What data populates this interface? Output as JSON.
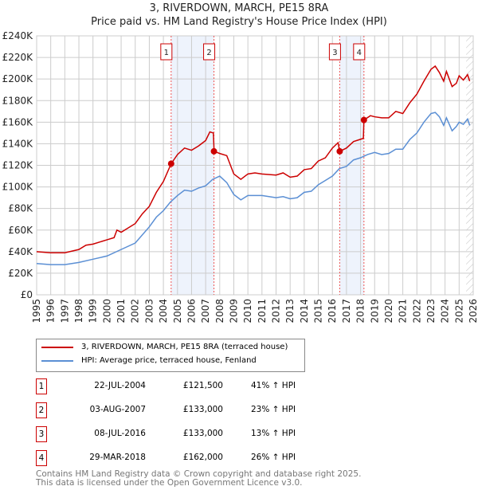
{
  "chart_data": {
    "type": "line",
    "title": "3, RIVERDOWN, MARCH, PE15 8RA",
    "subtitle": "Price paid vs. HM Land Registry's House Price Index (HPI)",
    "ylim": [
      0,
      240000
    ],
    "xlim": [
      1995,
      2026
    ],
    "y_ticks": [
      "£0",
      "£20K",
      "£40K",
      "£60K",
      "£80K",
      "£100K",
      "£120K",
      "£140K",
      "£160K",
      "£180K",
      "£200K",
      "£220K",
      "£240K"
    ],
    "x_ticks": [
      "1995",
      "1996",
      "1997",
      "1998",
      "1999",
      "2000",
      "2001",
      "2002",
      "2003",
      "2004",
      "2005",
      "2006",
      "2007",
      "2008",
      "2009",
      "2010",
      "2011",
      "2012",
      "2013",
      "2014",
      "2015",
      "2016",
      "2017",
      "2018",
      "2019",
      "2020",
      "2021",
      "2022",
      "2023",
      "2024",
      "2025",
      "2026"
    ],
    "grid": true,
    "series": [
      {
        "name": "3, RIVERDOWN, MARCH, PE15 8RA (terraced house)",
        "color": "#cc0000",
        "points": [
          [
            1995,
            40
          ],
          [
            1996,
            39
          ],
          [
            1997,
            39
          ],
          [
            1998,
            42
          ],
          [
            1998.5,
            46
          ],
          [
            1999,
            47
          ],
          [
            2000,
            51
          ],
          [
            2000.5,
            53
          ],
          [
            2000.7,
            60
          ],
          [
            2001,
            58
          ],
          [
            2002,
            66
          ],
          [
            2002.5,
            75
          ],
          [
            2003,
            82
          ],
          [
            2003.5,
            95
          ],
          [
            2004,
            105
          ],
          [
            2004.55,
            121.5
          ],
          [
            2005,
            130
          ],
          [
            2005.5,
            136
          ],
          [
            2006,
            134
          ],
          [
            2006.5,
            138
          ],
          [
            2007,
            143
          ],
          [
            2007.3,
            151
          ],
          [
            2007.55,
            150
          ],
          [
            2007.6,
            133
          ],
          [
            2008,
            131
          ],
          [
            2008.5,
            129
          ],
          [
            2009,
            112
          ],
          [
            2009.5,
            107
          ],
          [
            2010,
            112
          ],
          [
            2010.5,
            113
          ],
          [
            2011,
            112
          ],
          [
            2012,
            111
          ],
          [
            2012.5,
            113
          ],
          [
            2013,
            109
          ],
          [
            2013.5,
            110
          ],
          [
            2014,
            116
          ],
          [
            2014.5,
            117
          ],
          [
            2015,
            124
          ],
          [
            2015.5,
            127
          ],
          [
            2016,
            136
          ],
          [
            2016.4,
            141
          ],
          [
            2016.52,
            133
          ],
          [
            2017,
            136
          ],
          [
            2017.5,
            142
          ],
          [
            2018.2,
            145
          ],
          [
            2018.24,
            162
          ],
          [
            2018.7,
            166
          ],
          [
            2019,
            165
          ],
          [
            2019.5,
            164
          ],
          [
            2020,
            164
          ],
          [
            2020.5,
            170
          ],
          [
            2021,
            168
          ],
          [
            2021.5,
            178
          ],
          [
            2022,
            186
          ],
          [
            2022.5,
            198
          ],
          [
            2023,
            209
          ],
          [
            2023.3,
            212
          ],
          [
            2023.6,
            206
          ],
          [
            2023.9,
            198
          ],
          [
            2024.1,
            207
          ],
          [
            2024.5,
            193
          ],
          [
            2024.8,
            196
          ],
          [
            2025,
            203
          ],
          [
            2025.3,
            199
          ],
          [
            2025.6,
            204
          ],
          [
            2025.75,
            198
          ]
        ]
      },
      {
        "name": "HPI: Average price, terraced house, Fenland",
        "color": "#5b8fd4",
        "points": [
          [
            1995,
            29
          ],
          [
            1996,
            28
          ],
          [
            1997,
            28
          ],
          [
            1998,
            30
          ],
          [
            1999,
            33
          ],
          [
            2000,
            36
          ],
          [
            2001,
            42
          ],
          [
            2002,
            48
          ],
          [
            2003,
            63
          ],
          [
            2003.5,
            72
          ],
          [
            2004,
            78
          ],
          [
            2004.5,
            86
          ],
          [
            2005,
            92
          ],
          [
            2005.5,
            97
          ],
          [
            2006,
            96
          ],
          [
            2006.5,
            99
          ],
          [
            2007,
            101
          ],
          [
            2007.5,
            107
          ],
          [
            2008,
            110
          ],
          [
            2008.5,
            104
          ],
          [
            2009,
            93
          ],
          [
            2009.5,
            88
          ],
          [
            2010,
            92
          ],
          [
            2011,
            92
          ],
          [
            2012,
            90
          ],
          [
            2012.5,
            91
          ],
          [
            2013,
            89
          ],
          [
            2013.5,
            90
          ],
          [
            2014,
            95
          ],
          [
            2014.5,
            96
          ],
          [
            2015,
            102
          ],
          [
            2015.5,
            106
          ],
          [
            2016,
            110
          ],
          [
            2016.5,
            117
          ],
          [
            2017,
            119
          ],
          [
            2017.5,
            125
          ],
          [
            2018,
            127
          ],
          [
            2018.5,
            130
          ],
          [
            2019,
            132
          ],
          [
            2019.5,
            130
          ],
          [
            2020,
            131
          ],
          [
            2020.5,
            135
          ],
          [
            2021,
            135
          ],
          [
            2021.5,
            144
          ],
          [
            2022,
            150
          ],
          [
            2022.5,
            160
          ],
          [
            2023,
            168
          ],
          [
            2023.3,
            169
          ],
          [
            2023.6,
            165
          ],
          [
            2023.9,
            157
          ],
          [
            2024.1,
            164
          ],
          [
            2024.5,
            152
          ],
          [
            2024.8,
            156
          ],
          [
            2025,
            160
          ],
          [
            2025.3,
            158
          ],
          [
            2025.6,
            163
          ],
          [
            2025.75,
            157
          ]
        ]
      }
    ],
    "sales": [
      {
        "id": "1",
        "x": 2004.55,
        "price": 121.5,
        "date": "22-JUL-2004",
        "price_label": "£121,500",
        "hpi": "41% ↑ HPI"
      },
      {
        "id": "2",
        "x": 2007.59,
        "price": 133,
        "date": "03-AUG-2007",
        "price_label": "£133,000",
        "hpi": "23% ↑ HPI"
      },
      {
        "id": "3",
        "x": 2016.52,
        "price": 133,
        "date": "08-JUL-2016",
        "price_label": "£133,000",
        "hpi": "13% ↑ HPI"
      },
      {
        "id": "4",
        "x": 2018.24,
        "price": 162,
        "date": "29-MAR-2018",
        "price_label": "£162,000",
        "hpi": "26% ↑ HPI"
      }
    ],
    "shaded_ranges": [
      [
        2004.55,
        2007.59
      ],
      [
        2016.52,
        2018.24
      ]
    ],
    "forecast_start": 2025.5
  },
  "footer": {
    "line1": "Contains HM Land Registry data © Crown copyright and database right 2025.",
    "line2": "This data is licensed under the Open Government Licence v3.0."
  }
}
